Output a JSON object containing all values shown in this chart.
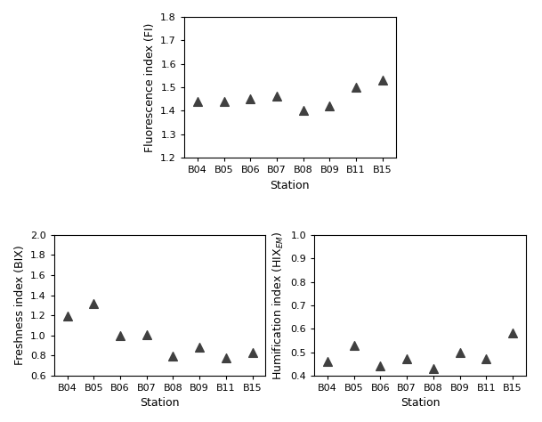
{
  "FI_stations": [
    "B04",
    "B05",
    "B06",
    "B07",
    "B08",
    "B09",
    "B11",
    "B15"
  ],
  "FI_vals": [
    1.44,
    1.44,
    1.45,
    1.46,
    1.4,
    1.42,
    1.5,
    1.53
  ],
  "BIX_stations": [
    "B04",
    "B05",
    "B06",
    "B07",
    "B08",
    "B09",
    "B11",
    "B15"
  ],
  "BIX_vals": [
    1.19,
    1.32,
    1.0,
    1.01,
    0.79,
    0.88,
    0.78,
    0.83
  ],
  "HIX_stations": [
    "B04",
    "B05",
    "B06",
    "B07",
    "B08",
    "B09",
    "B11",
    "B15"
  ],
  "HIX_vals": [
    0.46,
    0.53,
    0.44,
    0.47,
    0.43,
    0.5,
    0.47,
    0.58
  ],
  "marker": "^",
  "marker_color": "#404040",
  "marker_size": 7,
  "top_xlabel": "Station",
  "top_ylabel": "Fluorescence index (FI)",
  "bottom_left_xlabel": "Station",
  "bottom_left_ylabel": "Freshness index (BIX)",
  "bottom_right_xlabel": "Station",
  "FI_ylim": [
    1.2,
    1.8
  ],
  "FI_yticks": [
    1.2,
    1.3,
    1.4,
    1.5,
    1.6,
    1.7,
    1.8
  ],
  "BIX_ylim": [
    0.6,
    2.0
  ],
  "BIX_yticks": [
    0.6,
    0.8,
    1.0,
    1.2,
    1.4,
    1.6,
    1.8,
    2.0
  ],
  "HIX_ylim": [
    0.4,
    1.0
  ],
  "HIX_yticks": [
    0.4,
    0.5,
    0.6,
    0.7,
    0.8,
    0.9,
    1.0
  ],
  "background_color": "#ffffff",
  "fig_width": 6.09,
  "fig_height": 4.74
}
